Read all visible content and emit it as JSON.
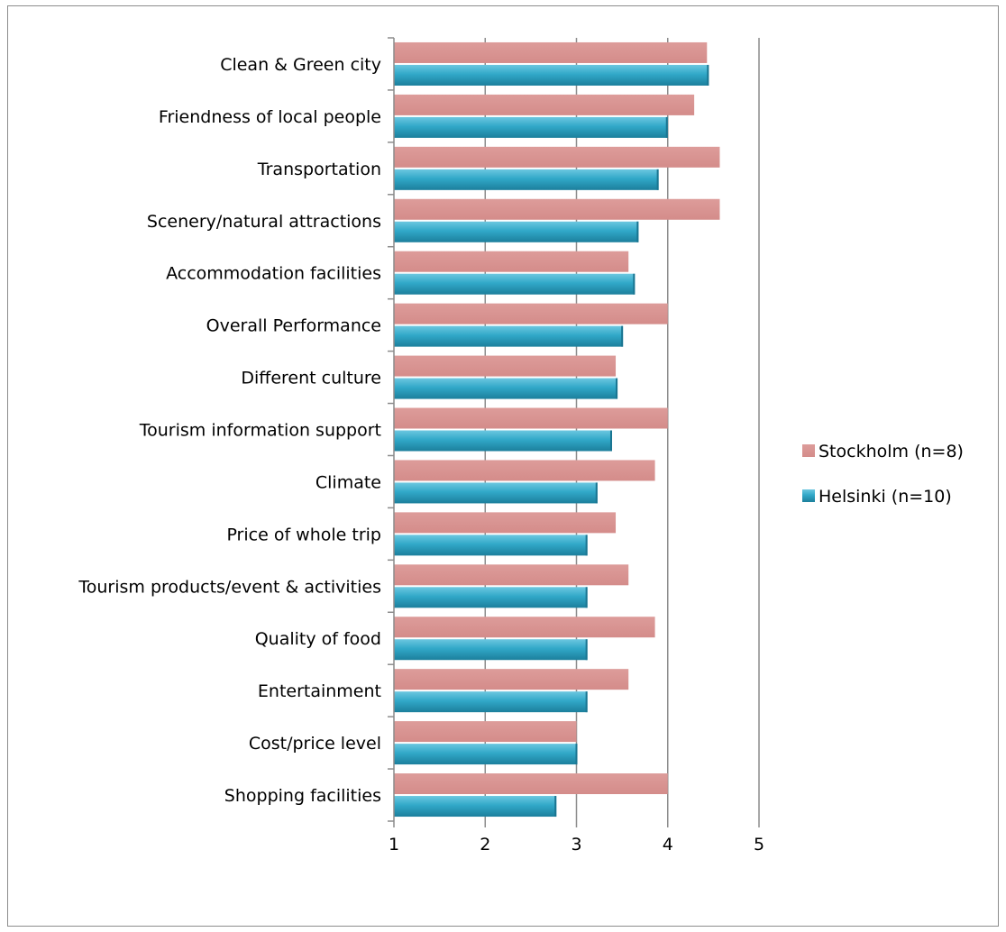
{
  "chart_data": {
    "type": "bar",
    "orientation": "horizontal",
    "categories": [
      "Clean & Green city",
      "Friendness of local people",
      "Transportation",
      "Scenery/natural attractions",
      "Accommodation facilities",
      "Overall Performance",
      "Different culture",
      "Tourism information support",
      "Climate",
      "Price of whole trip",
      "Tourism products/event & activities",
      "Quality of food",
      "Entertainment",
      "Cost/price level",
      "Shopping facilities"
    ],
    "series": [
      {
        "name": "Stockholm (n=8)",
        "color": "#d99694",
        "values": [
          4.43,
          4.29,
          4.57,
          4.57,
          3.57,
          4.0,
          3.43,
          4.0,
          3.86,
          3.43,
          3.57,
          3.86,
          3.57,
          3.0,
          4.0
        ]
      },
      {
        "name": "Helsinki (n=10)",
        "color": "#31a8c8",
        "values": [
          4.45,
          4.0,
          3.9,
          3.68,
          3.64,
          3.51,
          3.45,
          3.39,
          3.23,
          3.12,
          3.12,
          3.12,
          3.12,
          3.01,
          2.78
        ]
      }
    ],
    "xlim": [
      1,
      5
    ],
    "xticks": [
      "1",
      "2",
      "3",
      "4",
      "5"
    ],
    "grid": true,
    "legend_position": "right",
    "title": "",
    "xlabel": "",
    "ylabel": ""
  }
}
